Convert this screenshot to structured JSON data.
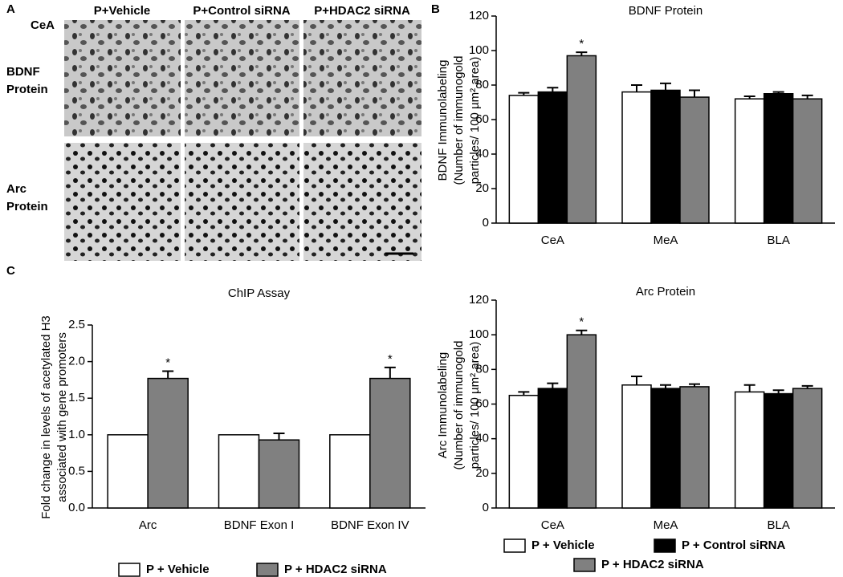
{
  "panels": {
    "letters": [
      "A",
      "B",
      "C"
    ],
    "region": "CeA",
    "columns": [
      "P+Vehicle",
      "P+Control siRNA",
      "P+HDAC2 siRNA"
    ],
    "rows": [
      [
        "BDNF",
        "Protein"
      ],
      [
        "Arc",
        "Protein"
      ]
    ]
  },
  "chart_data": [
    {
      "type": "bar",
      "title": "BDNF Protein",
      "ylabel": [
        "BDNF Immunolabeling",
        "(Number of immunogold",
        "particles/ 100 µm² area)"
      ],
      "categories": [
        "CeA",
        "MeA",
        "BLA"
      ],
      "ylim": [
        0,
        120
      ],
      "yticks": [
        0,
        20,
        40,
        60,
        80,
        100,
        120
      ],
      "legend": false,
      "series": [
        {
          "name": "P + Vehicle",
          "color": "#ffffff",
          "values": [
            74,
            76,
            72
          ],
          "errors": [
            1.5,
            4,
            1.5
          ]
        },
        {
          "name": "P + Control siRNA",
          "color": "#000000",
          "values": [
            76,
            77,
            75
          ],
          "errors": [
            2.5,
            4,
            1
          ]
        },
        {
          "name": "P + HDAC2 siRNA",
          "color": "#808080",
          "values": [
            97,
            73,
            72
          ],
          "errors": [
            2,
            4,
            2
          ],
          "markers": [
            "*",
            null,
            null
          ]
        }
      ]
    },
    {
      "type": "bar",
      "title": "Arc Protein",
      "ylabel": [
        "Arc Immunolabeling",
        "(Number of immunogold",
        "particles/ 100 µm² area)"
      ],
      "categories": [
        "CeA",
        "MeA",
        "BLA"
      ],
      "ylim": [
        0,
        120
      ],
      "yticks": [
        0,
        20,
        40,
        60,
        80,
        100,
        120
      ],
      "legend": true,
      "series": [
        {
          "name": "P + Vehicle",
          "color": "#ffffff",
          "values": [
            65,
            71,
            67
          ],
          "errors": [
            2,
            5,
            4
          ]
        },
        {
          "name": "P + Control siRNA",
          "color": "#000000",
          "values": [
            69,
            69,
            66
          ],
          "errors": [
            3,
            2,
            2
          ]
        },
        {
          "name": "P + HDAC2 siRNA",
          "color": "#808080",
          "values": [
            100,
            70,
            69
          ],
          "errors": [
            2.5,
            1.5,
            1.5
          ],
          "markers": [
            "*",
            null,
            null
          ]
        }
      ]
    },
    {
      "type": "bar",
      "title": "ChIP Assay",
      "ylabel": [
        "Fold change in levels of acetylated H3",
        "associated with gene promoters"
      ],
      "categories": [
        "Arc",
        "BDNF Exon I",
        "BDNF Exon IV"
      ],
      "ylim": [
        0,
        2.5
      ],
      "yticks": [
        {
          "value": 0,
          "label": "0.0"
        },
        0.5,
        {
          "value": 1,
          "label": "1.0"
        },
        1.5,
        {
          "value": 2,
          "label": "2.0"
        },
        2.5
      ],
      "legend": true,
      "series": [
        {
          "name": "P + Vehicle",
          "color": "#ffffff",
          "values": [
            1,
            1,
            1
          ]
        },
        {
          "name": "P + HDAC2 siRNA",
          "color": "#808080",
          "values": [
            1.77,
            0.93,
            1.77
          ],
          "errors": [
            0.1,
            0.09,
            0.15
          ],
          "markers": [
            "*",
            null,
            "*"
          ]
        }
      ]
    }
  ]
}
